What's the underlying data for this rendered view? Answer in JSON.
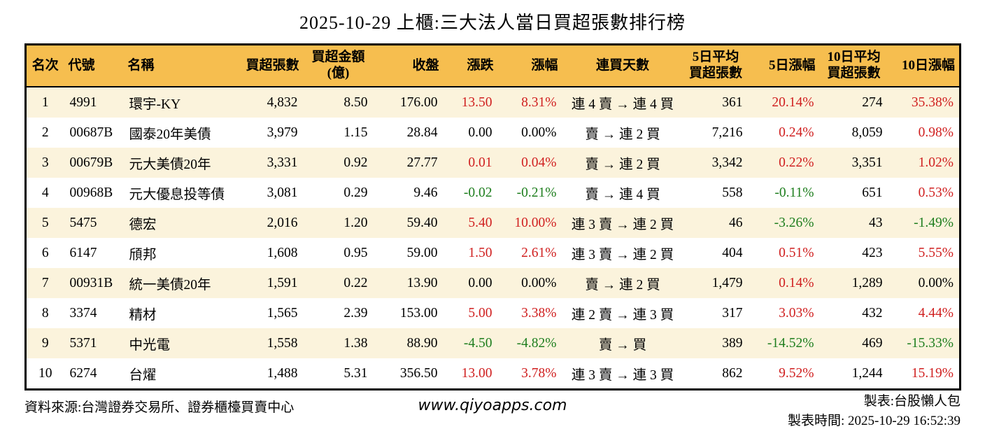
{
  "title": "2025-10-29 上櫃:三大法人當日買超張數排行榜",
  "colors": {
    "header_bg": "#F6BE4F",
    "row_alt_bg": "#FBF3DC",
    "up": "#D02020",
    "down": "#1E7E1E",
    "text": "#000000",
    "border": "#000000"
  },
  "footer": {
    "source": "資料來源:台灣證券交易所、證券櫃檯買賣中心",
    "website": "www.qiyoapps.com",
    "maker": "製表:台股懶人包",
    "made_time": "製表時間: 2025-10-29 16:52:39"
  },
  "chart_data": {
    "type": "table",
    "columns": [
      {
        "key": "rank",
        "label": "名次",
        "align": "center"
      },
      {
        "key": "code",
        "label": "代號",
        "align": "left"
      },
      {
        "key": "name",
        "label": "名稱",
        "align": "left"
      },
      {
        "key": "net_buy_vol",
        "label": "買超張數",
        "align": "right"
      },
      {
        "key": "net_buy_amt",
        "label": "買超金額\n(億)",
        "align": "right",
        "header_align": "center"
      },
      {
        "key": "close",
        "label": "收盤",
        "align": "right"
      },
      {
        "key": "change",
        "label": "漲跌",
        "align": "right"
      },
      {
        "key": "change_pct",
        "label": "漲幅",
        "align": "right"
      },
      {
        "key": "streak",
        "label": "連買天數",
        "align": "center"
      },
      {
        "key": "avg5_vol",
        "label": "5日平均\n買超張數",
        "align": "right",
        "header_align": "center"
      },
      {
        "key": "pct5",
        "label": "5日漲幅",
        "align": "right"
      },
      {
        "key": "avg10_vol",
        "label": "10日平均\n買超張數",
        "align": "right",
        "header_align": "center"
      },
      {
        "key": "pct10",
        "label": "10日漲幅",
        "align": "right"
      }
    ],
    "rows": [
      {
        "rank": "1",
        "code": "4991",
        "name": "環宇-KY",
        "net_buy_vol": "4,832",
        "net_buy_amt": "8.50",
        "close": "176.00",
        "change": "13.50",
        "change_trend": "up",
        "change_pct": "8.31%",
        "change_pct_trend": "up",
        "streak": "連 4 賣 → 連 4 買",
        "avg5_vol": "361",
        "pct5": "20.14%",
        "pct5_trend": "up",
        "avg10_vol": "274",
        "pct10": "35.38%",
        "pct10_trend": "up"
      },
      {
        "rank": "2",
        "code": "00687B",
        "name": "國泰20年美債",
        "net_buy_vol": "3,979",
        "net_buy_amt": "1.15",
        "close": "28.84",
        "change": "0.00",
        "change_trend": "flat",
        "change_pct": "0.00%",
        "change_pct_trend": "flat",
        "streak": "賣 → 連 2 買",
        "avg5_vol": "7,216",
        "pct5": "0.24%",
        "pct5_trend": "up",
        "avg10_vol": "8,059",
        "pct10": "0.98%",
        "pct10_trend": "up"
      },
      {
        "rank": "3",
        "code": "00679B",
        "name": "元大美債20年",
        "net_buy_vol": "3,331",
        "net_buy_amt": "0.92",
        "close": "27.77",
        "change": "0.01",
        "change_trend": "up",
        "change_pct": "0.04%",
        "change_pct_trend": "up",
        "streak": "賣 → 連 2 買",
        "avg5_vol": "3,342",
        "pct5": "0.22%",
        "pct5_trend": "up",
        "avg10_vol": "3,351",
        "pct10": "1.02%",
        "pct10_trend": "up"
      },
      {
        "rank": "4",
        "code": "00968B",
        "name": "元大優息投等債",
        "net_buy_vol": "3,081",
        "net_buy_amt": "0.29",
        "close": "9.46",
        "change": "-0.02",
        "change_trend": "down",
        "change_pct": "-0.21%",
        "change_pct_trend": "down",
        "streak": "賣 → 連 4 買",
        "avg5_vol": "558",
        "pct5": "-0.11%",
        "pct5_trend": "down",
        "avg10_vol": "651",
        "pct10": "0.53%",
        "pct10_trend": "up"
      },
      {
        "rank": "5",
        "code": "5475",
        "name": "德宏",
        "net_buy_vol": "2,016",
        "net_buy_amt": "1.20",
        "close": "59.40",
        "change": "5.40",
        "change_trend": "up",
        "change_pct": "10.00%",
        "change_pct_trend": "up",
        "streak": "連 3 賣 → 連 2 買",
        "avg5_vol": "46",
        "pct5": "-3.26%",
        "pct5_trend": "down",
        "avg10_vol": "43",
        "pct10": "-1.49%",
        "pct10_trend": "down"
      },
      {
        "rank": "6",
        "code": "6147",
        "name": "頎邦",
        "net_buy_vol": "1,608",
        "net_buy_amt": "0.95",
        "close": "59.00",
        "change": "1.50",
        "change_trend": "up",
        "change_pct": "2.61%",
        "change_pct_trend": "up",
        "streak": "連 3 賣 → 連 2 買",
        "avg5_vol": "404",
        "pct5": "0.51%",
        "pct5_trend": "up",
        "avg10_vol": "423",
        "pct10": "5.55%",
        "pct10_trend": "up"
      },
      {
        "rank": "7",
        "code": "00931B",
        "name": "統一美債20年",
        "net_buy_vol": "1,591",
        "net_buy_amt": "0.22",
        "close": "13.90",
        "change": "0.00",
        "change_trend": "flat",
        "change_pct": "0.00%",
        "change_pct_trend": "flat",
        "streak": "賣 → 連 2 買",
        "avg5_vol": "1,479",
        "pct5": "0.14%",
        "pct5_trend": "up",
        "avg10_vol": "1,289",
        "pct10": "0.00%",
        "pct10_trend": "flat"
      },
      {
        "rank": "8",
        "code": "3374",
        "name": "精材",
        "net_buy_vol": "1,565",
        "net_buy_amt": "2.39",
        "close": "153.00",
        "change": "5.00",
        "change_trend": "up",
        "change_pct": "3.38%",
        "change_pct_trend": "up",
        "streak": "連 2 賣 → 連 3 買",
        "avg5_vol": "317",
        "pct5": "3.03%",
        "pct5_trend": "up",
        "avg10_vol": "432",
        "pct10": "4.44%",
        "pct10_trend": "up"
      },
      {
        "rank": "9",
        "code": "5371",
        "name": "中光電",
        "net_buy_vol": "1,558",
        "net_buy_amt": "1.38",
        "close": "88.90",
        "change": "-4.50",
        "change_trend": "down",
        "change_pct": "-4.82%",
        "change_pct_trend": "down",
        "streak": "賣 → 買",
        "avg5_vol": "389",
        "pct5": "-14.52%",
        "pct5_trend": "down",
        "avg10_vol": "469",
        "pct10": "-15.33%",
        "pct10_trend": "down"
      },
      {
        "rank": "10",
        "code": "6274",
        "name": "台燿",
        "net_buy_vol": "1,488",
        "net_buy_amt": "5.31",
        "close": "356.50",
        "change": "13.00",
        "change_trend": "up",
        "change_pct": "3.78%",
        "change_pct_trend": "up",
        "streak": "連 3 賣 → 連 3 買",
        "avg5_vol": "862",
        "pct5": "9.52%",
        "pct5_trend": "up",
        "avg10_vol": "1,244",
        "pct10": "15.19%",
        "pct10_trend": "up"
      }
    ]
  }
}
